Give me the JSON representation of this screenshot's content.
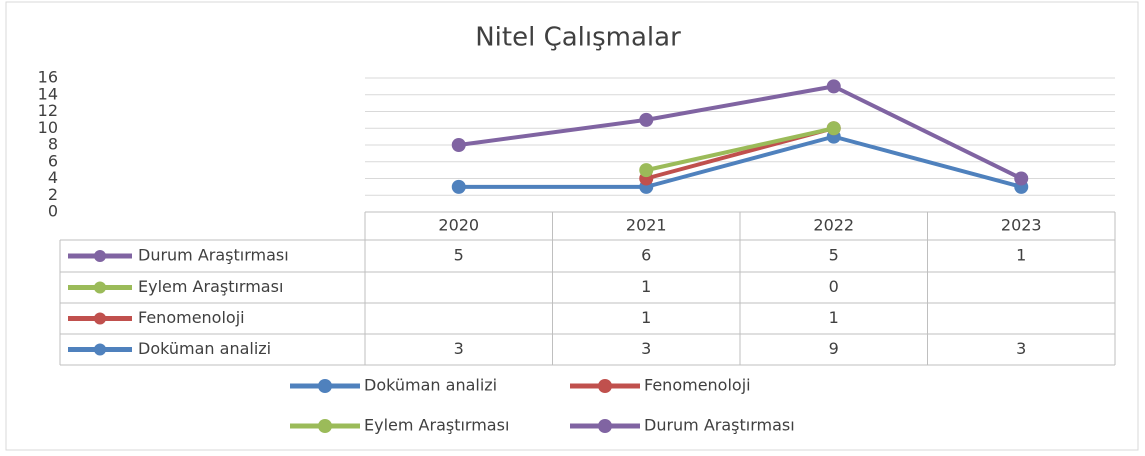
{
  "chart_data": {
    "type": "line",
    "stacked": true,
    "title": "Nitel Çalışmalar",
    "categories": [
      "2020",
      "2021",
      "2022",
      "2023"
    ],
    "series": [
      {
        "name": "Doküman analizi",
        "color": "#4f81bd",
        "values": [
          3,
          3,
          9,
          3
        ]
      },
      {
        "name": "Fenomenoloji",
        "color": "#c0504d",
        "values": [
          null,
          1,
          1,
          null
        ]
      },
      {
        "name": "Eylem Araştırması",
        "color": "#9bbb59",
        "values": [
          null,
          1,
          0,
          null
        ]
      },
      {
        "name": "Durum Araştırması",
        "color": "#8064a2",
        "values": [
          5,
          6,
          5,
          1
        ]
      }
    ],
    "ylim": [
      0,
      16
    ],
    "yticks": [
      0,
      2,
      4,
      6,
      8,
      10,
      12,
      14,
      16
    ],
    "grid": true,
    "data_table": true
  }
}
